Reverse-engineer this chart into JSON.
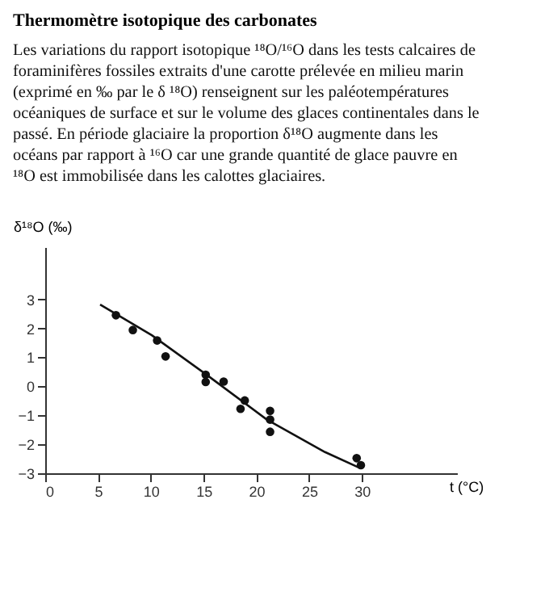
{
  "chart_data": {
    "type": "scatter",
    "title": "Thermomètre isotopique des carbonates",
    "subtitle": [
      "Les variations du rapport isotopique ¹⁸O/¹⁶O dans les tests calcaires de",
      "foraminifères fossiles extraits d'une carotte prélevée en milieu marin",
      "(exprimé en ‰ par le δ ¹⁸O) renseignent sur les paléotempératures",
      "océaniques de surface et sur le volume des glaces continentales dans le",
      "passé. En période glaciaire la proportion  δ¹⁸O augmente dans les",
      "océans par rapport à ¹⁶O car une grande quantité de glace pauvre en",
      "¹⁸O est immobilisée dans les calottes glaciaires."
    ],
    "xlabel": "t (°C)",
    "ylabel": "δ¹⁸O (‰)",
    "xlim": [
      0,
      39
    ],
    "ylim": [
      -3,
      4.8
    ],
    "xticks": [
      0,
      5,
      10,
      15,
      20,
      25,
      30
    ],
    "yticks": [
      -3,
      -2,
      -1,
      0,
      1,
      2,
      3
    ],
    "grid": false,
    "series": [
      {
        "marker": "circle",
        "color": "#111111",
        "x": [
          6.7,
          8.3,
          10.6,
          11.4,
          15.2,
          15.2,
          16.9,
          18.9,
          18.5,
          21.3,
          21.3,
          21.3,
          29.5,
          29.9
        ],
        "values": [
          2.45,
          1.94,
          1.58,
          1.03,
          0.4,
          0.15,
          0.16,
          -0.49,
          -0.78,
          -0.85,
          -1.15,
          -1.57,
          -2.48,
          -2.72
        ]
      },
      {
        "type": "line",
        "marker": "none",
        "line_style": "solid",
        "color": "#111111",
        "x": [
          5.2,
          10.1,
          15.5,
          21,
          26.5,
          29.7
        ],
        "values": [
          2.82,
          1.76,
          0.34,
          -1.15,
          -2.27,
          -2.8
        ]
      }
    ]
  }
}
